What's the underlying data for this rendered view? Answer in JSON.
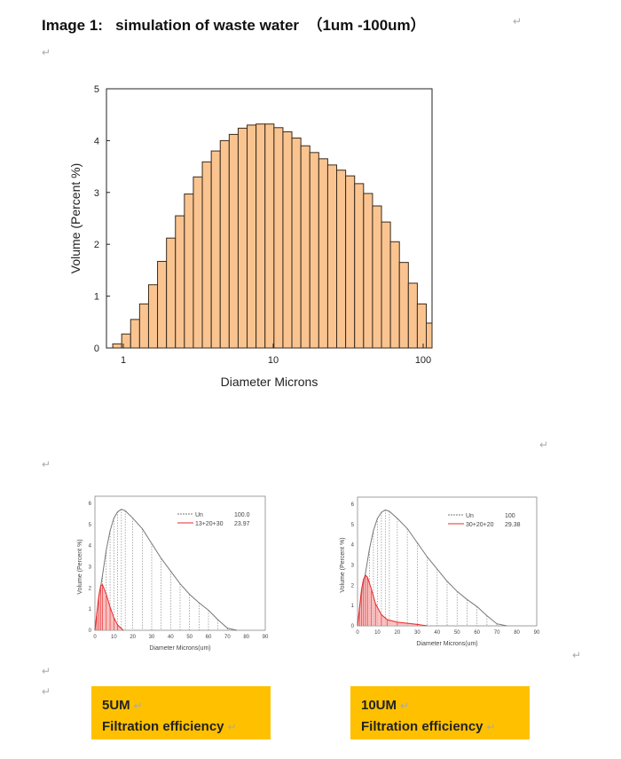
{
  "document": {
    "title": "Image 1:   simulation of waste water  （1um -100um）",
    "return_mark": "↵",
    "boxes": [
      {
        "line1": "5UM",
        "line2": "Filtration efficiency"
      },
      {
        "line1": "10UM",
        "line2": "Filtration efficiency"
      }
    ],
    "box_color": "#FFC000"
  },
  "chart_data": [
    {
      "type": "bar",
      "xlabel": "Diameter Microns",
      "ylabel": "Volume (Percent %)",
      "x_scale": "log",
      "xlim": [
        0.8,
        110
      ],
      "ylim": [
        0,
        5
      ],
      "xticks": [
        "1",
        "10",
        "100"
      ],
      "yticks": [
        "0",
        "1",
        "2",
        "3",
        "4",
        "5"
      ],
      "bar_color": "#FAC491",
      "bin_start": 0.85,
      "bin_ratio": 1.1475,
      "values": [
        0.08,
        0.27,
        0.55,
        0.85,
        1.22,
        1.67,
        2.12,
        2.55,
        2.97,
        3.3,
        3.59,
        3.8,
        4.0,
        4.12,
        4.24,
        4.3,
        4.32,
        4.32,
        4.25,
        4.17,
        4.05,
        3.9,
        3.77,
        3.65,
        3.53,
        3.43,
        3.32,
        3.17,
        2.98,
        2.74,
        2.43,
        2.05,
        1.65,
        1.25,
        0.85,
        0.48
      ]
    },
    {
      "type": "line",
      "xlabel": "Diameter Microns(um)",
      "ylabel": "Volume (Percent %)",
      "xlim": [
        0,
        90
      ],
      "ylim": [
        0,
        6
      ],
      "xticks": [
        "0",
        "10",
        "20",
        "30",
        "40",
        "50",
        "60",
        "70",
        "80",
        "90"
      ],
      "yticks": [
        "0",
        "1",
        "2",
        "3",
        "4",
        "5",
        "6"
      ],
      "series": [
        {
          "name": "Un",
          "value": "100.0",
          "color": "#777777",
          "x": [
            0,
            2,
            4,
            6,
            8,
            10,
            12,
            14,
            16,
            20,
            25,
            30,
            35,
            40,
            45,
            50,
            55,
            60,
            65,
            70,
            75
          ],
          "y": [
            0,
            1.5,
            2.6,
            3.8,
            4.7,
            5.3,
            5.6,
            5.72,
            5.65,
            5.3,
            4.8,
            4.1,
            3.4,
            2.8,
            2.2,
            1.7,
            1.3,
            0.95,
            0.5,
            0.1,
            0
          ]
        },
        {
          "name": "13+20+30",
          "value": "23.97",
          "color": "#E8282B",
          "x": [
            0,
            1,
            2,
            3,
            4,
            6,
            8,
            10,
            12,
            15
          ],
          "y": [
            0,
            0.8,
            1.6,
            2.1,
            2.15,
            1.7,
            1.1,
            0.6,
            0.25,
            0
          ]
        }
      ]
    },
    {
      "type": "line",
      "xlabel": "Diameter Microns(um)",
      "ylabel": "Volume (Percent %)",
      "xlim": [
        0,
        90
      ],
      "ylim": [
        0,
        6
      ],
      "xticks": [
        "0",
        "10",
        "20",
        "30",
        "40",
        "50",
        "60",
        "70",
        "80",
        "90"
      ],
      "yticks": [
        "0",
        "1",
        "2",
        "3",
        "4",
        "5",
        "6"
      ],
      "series": [
        {
          "name": "Un",
          "value": "100",
          "color": "#777777",
          "x": [
            0,
            2,
            4,
            6,
            8,
            10,
            12,
            14,
            16,
            20,
            25,
            30,
            35,
            40,
            45,
            50,
            55,
            60,
            65,
            70,
            75
          ],
          "y": [
            0,
            1.5,
            2.6,
            3.8,
            4.7,
            5.3,
            5.6,
            5.72,
            5.65,
            5.3,
            4.8,
            4.1,
            3.4,
            2.8,
            2.2,
            1.7,
            1.3,
            0.95,
            0.5,
            0.1,
            0
          ]
        },
        {
          "name": "30+20+20",
          "value": "29.38",
          "color": "#E8282B",
          "x": [
            0,
            1,
            2,
            3,
            4,
            5,
            7,
            9,
            12,
            15,
            20,
            30,
            35
          ],
          "y": [
            0,
            0.9,
            1.8,
            2.3,
            2.5,
            2.4,
            1.8,
            1.1,
            0.55,
            0.3,
            0.18,
            0.07,
            0
          ]
        }
      ]
    }
  ]
}
